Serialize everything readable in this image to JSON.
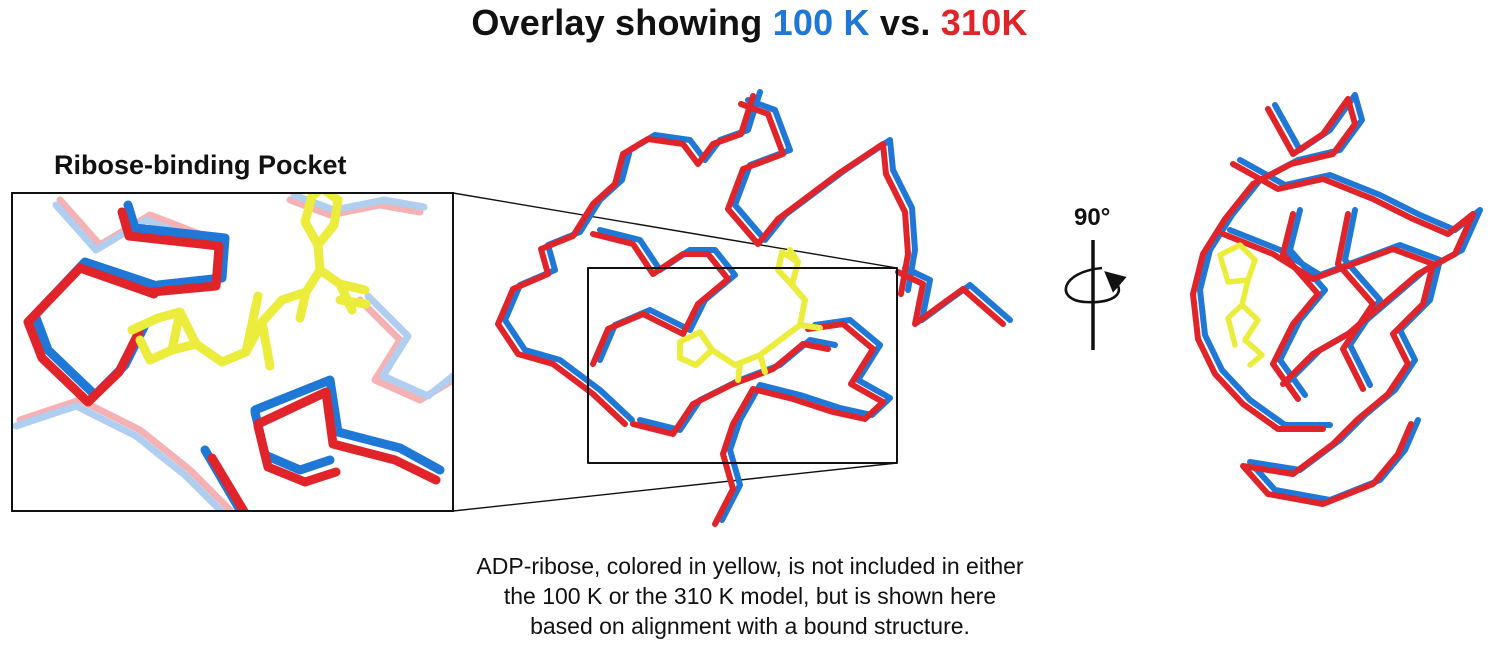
{
  "title": {
    "prefix": "Overlay showing ",
    "cold": "100 K",
    "middle": " vs. ",
    "warm": "310K"
  },
  "colors": {
    "cold": "#1f78d6",
    "warm": "#e0242a",
    "ligand": "#ecec3c",
    "outline": "#111111"
  },
  "inset": {
    "label": "Ribose-binding Pocket"
  },
  "rotation": {
    "label": "90°"
  },
  "caption": {
    "lines": [
      "ADP-ribose, colored in yellow, is not included in either",
      "the 100 K or the 310 K model, but is shown here",
      "based on alignment with a bound structure."
    ]
  }
}
